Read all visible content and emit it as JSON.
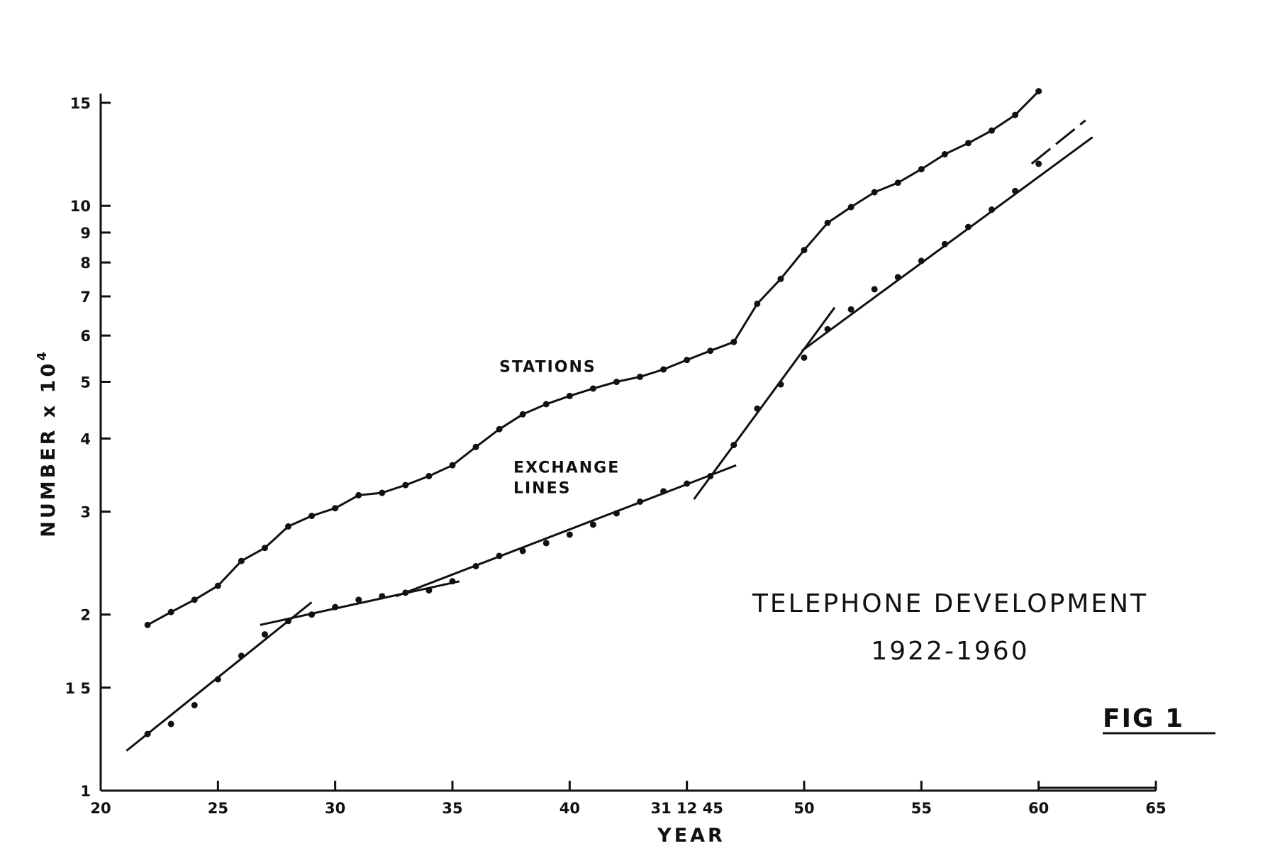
{
  "chart_data": {
    "type": "line",
    "title": "TELEPHONE DEVELOPMENT",
    "subtitle": "1922-1960",
    "figure_label": "FIG 1",
    "xlabel": "YEAR",
    "ylabel_main": "NUMBER x 10",
    "ylabel_exponent": "4",
    "yscale": "log",
    "ylim": [
      1,
      16
    ],
    "xlim": [
      20,
      65
    ],
    "grid": false,
    "x_ticks": [
      {
        "value": 20,
        "label": "20"
      },
      {
        "value": 25,
        "label": "25"
      },
      {
        "value": 30,
        "label": "30"
      },
      {
        "value": 35,
        "label": "35"
      },
      {
        "value": 40,
        "label": "40"
      },
      {
        "value": 45,
        "label": "31 12 45"
      },
      {
        "value": 50,
        "label": "50"
      },
      {
        "value": 55,
        "label": "55"
      },
      {
        "value": 60,
        "label": "60"
      },
      {
        "value": 65,
        "label": "65"
      }
    ],
    "y_ticks": [
      {
        "value": 1,
        "label": "1"
      },
      {
        "value": 1.5,
        "label": "1 5"
      },
      {
        "value": 2,
        "label": "2"
      },
      {
        "value": 3,
        "label": "3"
      },
      {
        "value": 4,
        "label": "4"
      },
      {
        "value": 5,
        "label": "5"
      },
      {
        "value": 6,
        "label": "6"
      },
      {
        "value": 7,
        "label": "7"
      },
      {
        "value": 8,
        "label": "8"
      },
      {
        "value": 9,
        "label": "9"
      },
      {
        "value": 10,
        "label": "10"
      },
      {
        "value": 15,
        "label": "15"
      }
    ],
    "series": [
      {
        "name": "STATIONS",
        "label_at": [
          37,
          5.2
        ],
        "x": [
          22,
          23,
          24,
          25,
          26,
          27,
          28,
          29,
          30,
          31,
          32,
          33,
          34,
          35,
          36,
          37,
          38,
          39,
          40,
          41,
          42,
          43,
          44,
          45,
          46,
          47,
          48,
          49,
          50,
          51,
          52,
          53,
          54,
          55,
          56,
          57,
          58,
          59,
          60
        ],
        "y": [
          1.92,
          2.02,
          2.12,
          2.24,
          2.47,
          2.6,
          2.83,
          2.95,
          3.04,
          3.2,
          3.23,
          3.33,
          3.45,
          3.6,
          3.87,
          4.15,
          4.4,
          4.58,
          4.73,
          4.87,
          5.0,
          5.1,
          5.25,
          5.45,
          5.65,
          5.85,
          6.8,
          7.5,
          8.4,
          9.35,
          9.95,
          10.55,
          10.95,
          11.55,
          12.25,
          12.8,
          13.45,
          14.3,
          15.7
        ]
      },
      {
        "name": "EXCHANGE LINES",
        "label_lines": [
          "EXCHANGE",
          "LINES"
        ],
        "label_at": [
          37.6,
          3.5
        ],
        "x": [
          22,
          23,
          24,
          25,
          26,
          27,
          28,
          29,
          30,
          31,
          32,
          33,
          34,
          35,
          36,
          37,
          38,
          39,
          40,
          41,
          42,
          43,
          44,
          45,
          46,
          47,
          48,
          49,
          50,
          51,
          52,
          53,
          54,
          55,
          56,
          57,
          58,
          59,
          60
        ],
        "y": [
          1.25,
          1.3,
          1.4,
          1.55,
          1.7,
          1.85,
          1.95,
          2.0,
          2.06,
          2.12,
          2.15,
          2.18,
          2.2,
          2.28,
          2.42,
          2.52,
          2.57,
          2.65,
          2.74,
          2.85,
          2.98,
          3.12,
          3.25,
          3.35,
          3.45,
          3.9,
          4.5,
          4.95,
          5.5,
          6.15,
          6.65,
          7.2,
          7.55,
          8.05,
          8.6,
          9.2,
          9.85,
          10.6,
          11.8
        ],
        "trend_lines": [
          {
            "x": [
              21.1,
              29.0
            ],
            "y": [
              1.17,
              2.1
            ]
          },
          {
            "x": [
              26.8,
              35.3
            ],
            "y": [
              1.92,
              2.28
            ]
          },
          {
            "x": [
              32.6,
              47.1
            ],
            "y": [
              2.15,
              3.6
            ]
          },
          {
            "x": [
              45.3,
              51.3
            ],
            "y": [
              3.15,
              6.7
            ]
          },
          {
            "x": [
              49.9,
              62.3
            ],
            "y": [
              5.65,
              13.1
            ]
          },
          {
            "x": [
              59.7,
              62.0
            ],
            "y": [
              11.8,
              14.0
            ]
          }
        ]
      }
    ]
  }
}
